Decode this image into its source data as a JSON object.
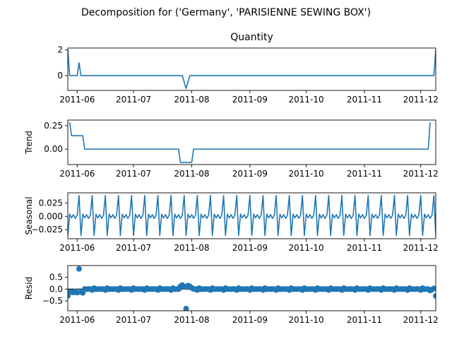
{
  "chart_data": {
    "type": "line",
    "title": "Decomposition for ('Germany', 'PARISIENNE SEWING BOX')",
    "colors": {
      "line": "#1f77b4",
      "axis": "#000000",
      "background": "#ffffff"
    },
    "x_range": [
      "2011-05-27",
      "2011-12-09"
    ],
    "x_ticks": [
      {
        "label": "2011-06",
        "date": "2011-06-01"
      },
      {
        "label": "2011-07",
        "date": "2011-07-01"
      },
      {
        "label": "2011-08",
        "date": "2011-08-01"
      },
      {
        "label": "2011-09",
        "date": "2011-09-01"
      },
      {
        "label": "2011-10",
        "date": "2011-10-01"
      },
      {
        "label": "2011-11",
        "date": "2011-11-01"
      },
      {
        "label": "2011-12",
        "date": "2011-12-01"
      }
    ],
    "panels": [
      {
        "name": "observed",
        "title": "Quantity",
        "ylabel": "",
        "kind": "line",
        "ylim": [
          -1.15,
          2.15
        ],
        "y_ticks": [
          {
            "label": "2",
            "value": 2
          },
          {
            "label": "0",
            "value": 0
          }
        ],
        "points": [
          [
            "2011-05-27",
            2
          ],
          [
            "2011-05-28",
            0
          ],
          [
            "2011-06-01",
            0
          ],
          [
            "2011-06-02",
            1
          ],
          [
            "2011-06-03",
            0
          ],
          [
            "2011-07-27",
            0
          ],
          [
            "2011-07-29",
            -1
          ],
          [
            "2011-07-31",
            0
          ],
          [
            "2011-12-08",
            0
          ],
          [
            "2011-12-09",
            2
          ]
        ]
      },
      {
        "name": "trend",
        "title": "",
        "ylabel": "Trend",
        "kind": "line",
        "ylim": [
          -0.165,
          0.31
        ],
        "y_ticks": [
          {
            "label": "0.25",
            "value": 0.25
          },
          {
            "label": "0.00",
            "value": 0
          }
        ],
        "points": [
          [
            "2011-05-28",
            0.286
          ],
          [
            "2011-05-29",
            0.143
          ],
          [
            "2011-06-04",
            0.143
          ],
          [
            "2011-06-05",
            0
          ],
          [
            "2011-07-25",
            0
          ],
          [
            "2011-07-26",
            -0.143
          ],
          [
            "2011-08-01",
            -0.143
          ],
          [
            "2011-08-02",
            0
          ],
          [
            "2011-12-05",
            0
          ],
          [
            "2011-12-06",
            0.286
          ]
        ]
      },
      {
        "name": "seasonal",
        "title": "",
        "ylabel": "Seasonal",
        "kind": "line",
        "ylim": [
          -0.042,
          0.044
        ],
        "y_ticks": [
          {
            "label": "0.025",
            "value": 0.025
          },
          {
            "label": "0.000",
            "value": 0
          },
          {
            "label": "−0.025",
            "value": -0.025
          }
        ],
        "period_days": 7,
        "period_start": "2011-05-27",
        "pattern": [
          -0.036,
          0.004,
          -0.003,
          0.003,
          -0.004,
          0.002,
          0.039
        ]
      },
      {
        "name": "resid",
        "title": "",
        "ylabel": "Resid",
        "kind": "scatter",
        "ylim": [
          -0.92,
          1.0
        ],
        "y_ticks": [
          {
            "label": "0.5",
            "value": 0.5
          },
          {
            "label": "0.0",
            "value": 0
          },
          {
            "label": "−0.5",
            "value": -0.5
          }
        ],
        "baseline": 0,
        "base_pattern": [
          0.04,
          -0.004,
          0.004,
          -0.003,
          0.005,
          -0.002,
          -0.04
        ],
        "special_points": [
          [
            "2011-05-27",
            -0.29
          ],
          [
            "2011-05-28",
            -0.14
          ],
          [
            "2011-05-29",
            -0.13
          ],
          [
            "2011-05-30",
            -0.14
          ],
          [
            "2011-05-31",
            -0.1
          ],
          [
            "2011-06-01",
            -0.15
          ],
          [
            "2011-06-02",
            0.86
          ],
          [
            "2011-06-03",
            -0.12
          ],
          [
            "2011-06-04",
            -0.16
          ],
          [
            "2011-07-26",
            0.12
          ],
          [
            "2011-07-27",
            0.17
          ],
          [
            "2011-07-28",
            0.1
          ],
          [
            "2011-07-29",
            -0.83
          ],
          [
            "2011-07-30",
            0.15
          ],
          [
            "2011-07-31",
            0.12
          ],
          [
            "2011-08-01",
            0.05
          ],
          [
            "2011-12-06",
            -0.06
          ],
          [
            "2011-12-07",
            -0.02
          ],
          [
            "2011-12-08",
            0.03
          ],
          [
            "2011-12-09",
            -0.29
          ]
        ]
      }
    ]
  }
}
